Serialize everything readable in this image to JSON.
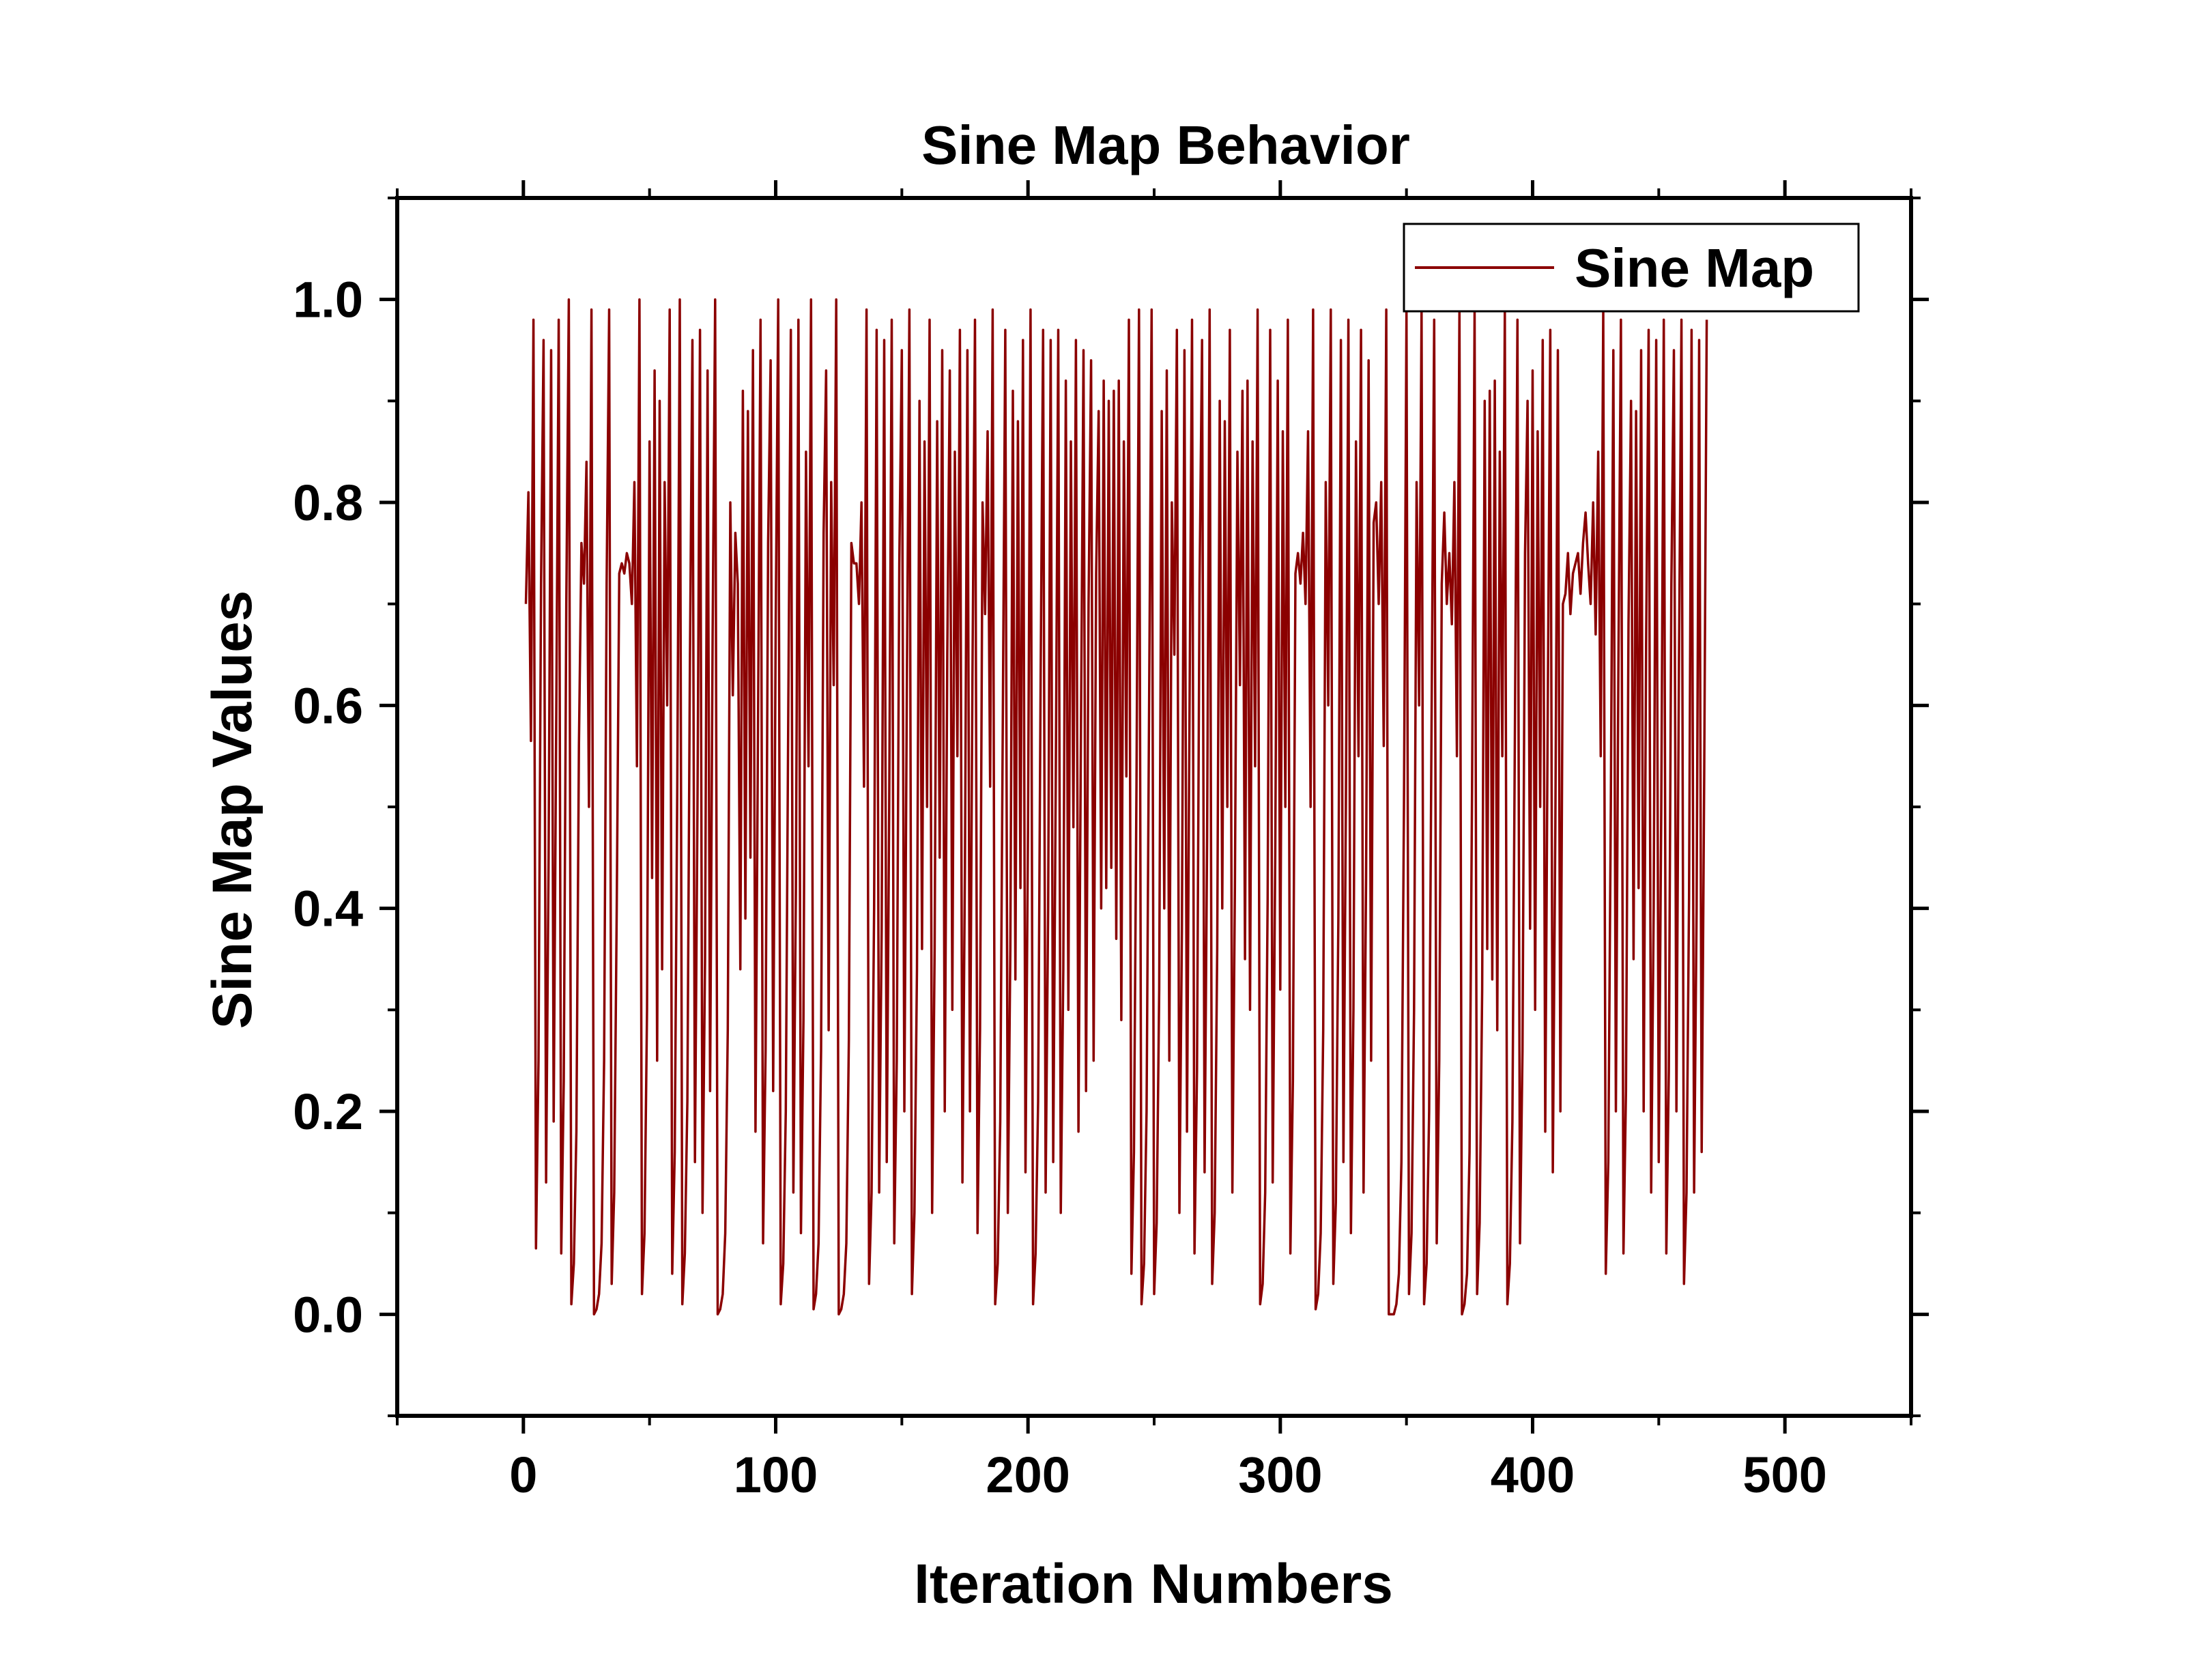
{
  "chart_data": {
    "type": "line",
    "title": "Sine Map Behavior",
    "xlabel": "Iteration Numbers",
    "ylabel": "Sine Map Values",
    "xlim": [
      -50,
      550
    ],
    "ylim": [
      -0.1,
      1.1
    ],
    "x_ticks": [
      0,
      100,
      200,
      300,
      400,
      500
    ],
    "y_ticks": [
      0.0,
      0.2,
      0.4,
      0.6,
      0.8,
      1.0
    ],
    "x_tick_labels": [
      "0",
      "100",
      "200",
      "300",
      "400",
      "500"
    ],
    "y_tick_labels": [
      "0.0",
      "0.2",
      "0.4",
      "0.6",
      "0.8",
      "1.0"
    ],
    "grid": false,
    "legend_position": "top-right",
    "series": [
      {
        "name": "Sine Map",
        "color": "#8B0000",
        "x_start": 1,
        "x_step": 1,
        "values": [
          0.7,
          0.81,
          0.565,
          0.98,
          0.065,
          0.25,
          0.72,
          0.96,
          0.13,
          0.45,
          0.95,
          0.19,
          0.58,
          0.98,
          0.06,
          0.23,
          0.7,
          1.0,
          0.01,
          0.05,
          0.18,
          0.56,
          0.76,
          0.72,
          0.84,
          0.5,
          0.99,
          0.0,
          0.005,
          0.02,
          0.07,
          0.25,
          0.72,
          0.99,
          0.03,
          0.12,
          0.4,
          0.73,
          0.74,
          0.73,
          0.75,
          0.74,
          0.7,
          0.82,
          0.54,
          1.0,
          0.02,
          0.08,
          0.3,
          0.86,
          0.43,
          0.93,
          0.25,
          0.9,
          0.34,
          0.82,
          0.6,
          0.99,
          0.04,
          0.16,
          0.52,
          1.0,
          0.01,
          0.06,
          0.21,
          0.64,
          0.96,
          0.15,
          0.5,
          0.97,
          0.1,
          0.35,
          0.93,
          0.22,
          0.67,
          1.0,
          0.0,
          0.005,
          0.02,
          0.08,
          0.28,
          0.8,
          0.61,
          0.77,
          0.72,
          0.34,
          0.91,
          0.39,
          0.89,
          0.45,
          0.95,
          0.18,
          0.58,
          0.98,
          0.07,
          0.26,
          0.76,
          0.94,
          0.22,
          0.68,
          1.0,
          0.01,
          0.05,
          0.2,
          0.6,
          0.97,
          0.12,
          0.42,
          0.98,
          0.08,
          0.29,
          0.85,
          0.54,
          1.0,
          0.005,
          0.02,
          0.07,
          0.26,
          0.77,
          0.93,
          0.28,
          0.82,
          0.62,
          1.0,
          0.0,
          0.005,
          0.02,
          0.07,
          0.27,
          0.76,
          0.74,
          0.74,
          0.7,
          0.8,
          0.52,
          0.99,
          0.03,
          0.12,
          0.4,
          0.97,
          0.12,
          0.38,
          0.96,
          0.15,
          0.5,
          0.98,
          0.07,
          0.25,
          0.74,
          0.95,
          0.2,
          0.62,
          0.99,
          0.02,
          0.1,
          0.34,
          0.9,
          0.36,
          0.86,
          0.5,
          0.98,
          0.1,
          0.36,
          0.88,
          0.45,
          0.95,
          0.2,
          0.65,
          0.93,
          0.3,
          0.85,
          0.55,
          0.97,
          0.13,
          0.44,
          0.95,
          0.2,
          0.63,
          0.98,
          0.08,
          0.28,
          0.8,
          0.69,
          0.87,
          0.52,
          0.99,
          0.01,
          0.05,
          0.19,
          0.58,
          0.97,
          0.1,
          0.36,
          0.91,
          0.33,
          0.88,
          0.42,
          0.96,
          0.14,
          0.48,
          0.99,
          0.01,
          0.06,
          0.21,
          0.63,
          0.97,
          0.12,
          0.4,
          0.96,
          0.15,
          0.52,
          0.97,
          0.1,
          0.34,
          0.92,
          0.3,
          0.86,
          0.48,
          0.96,
          0.18,
          0.58,
          0.95,
          0.22,
          0.7,
          0.94,
          0.25,
          0.73,
          0.89,
          0.4,
          0.92,
          0.42,
          0.9,
          0.44,
          0.91,
          0.37,
          0.92,
          0.29,
          0.86,
          0.53,
          0.98,
          0.04,
          0.16,
          0.52,
          0.99,
          0.01,
          0.05,
          0.2,
          0.6,
          0.99,
          0.02,
          0.09,
          0.32,
          0.89,
          0.4,
          0.93,
          0.25,
          0.8,
          0.65,
          0.97,
          0.1,
          0.38,
          0.95,
          0.18,
          0.59,
          0.98,
          0.06,
          0.24,
          0.72,
          0.96,
          0.14,
          0.47,
          0.99,
          0.03,
          0.1,
          0.36,
          0.9,
          0.4,
          0.88,
          0.5,
          0.97,
          0.12,
          0.42,
          0.85,
          0.62,
          0.91,
          0.35,
          0.92,
          0.3,
          0.86,
          0.54,
          0.99,
          0.01,
          0.03,
          0.12,
          0.41,
          0.97,
          0.13,
          0.45,
          0.92,
          0.32,
          0.87,
          0.5,
          0.98,
          0.06,
          0.23,
          0.73,
          0.75,
          0.72,
          0.77,
          0.7,
          0.87,
          0.5,
          0.99,
          0.005,
          0.02,
          0.08,
          0.28,
          0.82,
          0.6,
          0.99,
          0.03,
          0.11,
          0.39,
          0.96,
          0.15,
          0.5,
          0.98,
          0.08,
          0.3,
          0.86,
          0.55,
          0.97,
          0.12,
          0.43,
          0.94,
          0.25,
          0.78,
          0.8,
          0.7,
          0.82,
          0.56,
          0.99,
          0.0,
          0.0,
          0.0,
          0.01,
          0.04,
          0.15,
          0.5,
          0.99,
          0.02,
          0.08,
          0.3,
          0.82,
          0.6,
          0.99,
          0.01,
          0.05,
          0.2,
          0.6,
          0.98,
          0.07,
          0.25,
          0.72,
          0.79,
          0.7,
          0.75,
          0.68,
          0.82,
          0.55,
          0.99,
          0.0,
          0.01,
          0.04,
          0.16,
          0.52,
          0.99,
          0.02,
          0.09,
          0.32,
          0.9,
          0.36,
          0.91,
          0.33,
          0.92,
          0.28,
          0.85,
          0.55,
          0.99,
          0.01,
          0.05,
          0.19,
          0.58,
          0.98,
          0.07,
          0.26,
          0.75,
          0.9,
          0.38,
          0.93,
          0.3,
          0.87,
          0.5,
          0.96,
          0.18,
          0.6,
          0.97,
          0.14,
          0.48,
          0.95,
          0.2,
          0.7,
          0.71,
          0.75,
          0.69,
          0.73,
          0.74,
          0.75,
          0.71,
          0.76,
          0.79,
          0.74,
          0.7,
          0.8,
          0.67,
          0.85,
          0.55,
          0.99,
          0.04,
          0.15,
          0.5,
          0.95,
          0.2,
          0.64,
          0.98,
          0.06,
          0.22,
          0.68,
          0.9,
          0.35,
          0.89,
          0.42,
          0.95,
          0.2,
          0.66,
          0.97,
          0.12,
          0.4,
          0.96,
          0.15,
          0.5,
          0.98,
          0.06,
          0.24,
          0.72,
          0.95,
          0.2,
          0.64,
          0.98,
          0.03,
          0.12,
          0.41,
          0.97,
          0.12,
          0.4,
          0.96,
          0.16,
          0.53,
          0.98
        ]
      }
    ]
  }
}
